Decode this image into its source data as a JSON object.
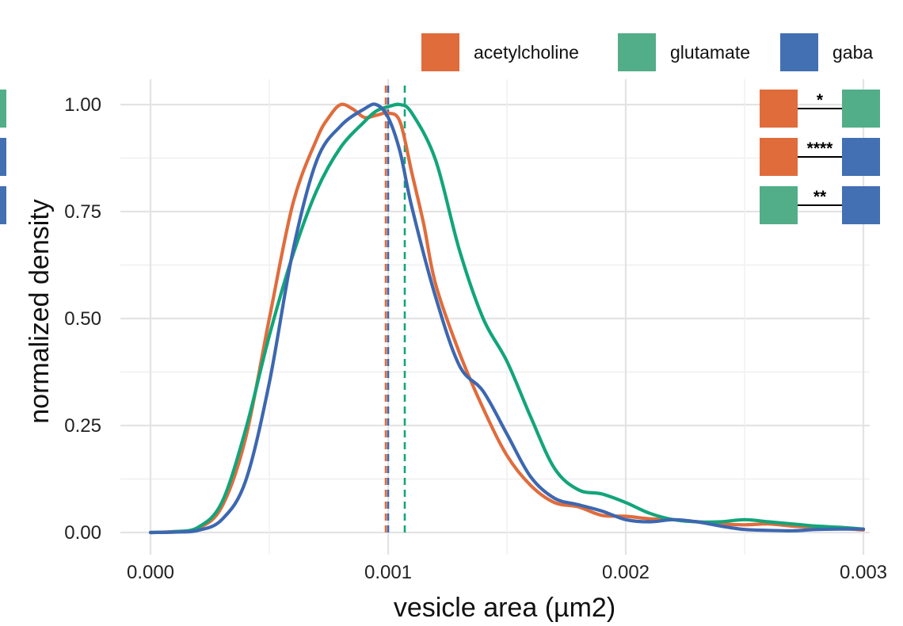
{
  "chart_data": {
    "type": "line",
    "title": "",
    "xlabel": "vesicle area (µm2)",
    "ylabel": "normalized density",
    "xlim": [
      -6e-05,
      0.003
    ],
    "ylim": [
      -0.04,
      1.05
    ],
    "x_ticks": [
      0.0,
      0.001,
      0.002,
      0.003
    ],
    "x_tick_labels": [
      "0.000",
      "0.001",
      "0.002",
      "0.003"
    ],
    "y_ticks": [
      0.0,
      0.25,
      0.5,
      0.75,
      1.0
    ],
    "y_tick_labels": [
      "0.00",
      "0.25",
      "0.50",
      "0.75",
      "1.00"
    ],
    "grid": true,
    "legend_position": "top-right",
    "colors": {
      "acetylcholine": "#E06C3C",
      "glutamate": "#12A57A",
      "gaba": "#3D67B0",
      "glutamate_swatch": "#52AE88",
      "gaba_swatch": "#4270B3"
    },
    "series": [
      {
        "name": "acetylcholine",
        "color": "#E06C3C",
        "mean_line_x": 0.00099,
        "x": [
          0,
          0.0001,
          0.0002,
          0.0003,
          0.0004,
          0.0005,
          0.0006,
          0.0007,
          0.00075,
          0.0008,
          0.00085,
          0.0009,
          0.00095,
          0.001,
          0.00105,
          0.0011,
          0.00115,
          0.0012,
          0.0013,
          0.0014,
          0.0015,
          0.0016,
          0.0017,
          0.0018,
          0.0019,
          0.002,
          0.0021,
          0.0022,
          0.0023,
          0.0024,
          0.0025,
          0.0026,
          0.0027,
          0.0028,
          0.0029,
          0.003
        ],
        "y": [
          0,
          0.002,
          0.01,
          0.06,
          0.22,
          0.5,
          0.77,
          0.92,
          0.97,
          1.0,
          0.99,
          0.97,
          0.975,
          0.98,
          0.96,
          0.84,
          0.72,
          0.58,
          0.42,
          0.29,
          0.18,
          0.11,
          0.07,
          0.06,
          0.04,
          0.038,
          0.032,
          0.03,
          0.025,
          0.02,
          0.018,
          0.02,
          0.015,
          0.012,
          0.01,
          0.006
        ]
      },
      {
        "name": "glutamate",
        "color": "#12A57A",
        "mean_line_x": 0.00107,
        "x": [
          0,
          0.0001,
          0.0002,
          0.0003,
          0.0004,
          0.0005,
          0.0006,
          0.0007,
          0.0008,
          0.0009,
          0.00095,
          0.001,
          0.00105,
          0.0011,
          0.0012,
          0.0013,
          0.0014,
          0.0015,
          0.0016,
          0.0017,
          0.0018,
          0.0019,
          0.002,
          0.0021,
          0.0022,
          0.0023,
          0.0024,
          0.0025,
          0.0026,
          0.0027,
          0.0028,
          0.0029,
          0.003
        ],
        "y": [
          0,
          0.002,
          0.012,
          0.07,
          0.24,
          0.46,
          0.65,
          0.8,
          0.9,
          0.96,
          0.985,
          0.995,
          1.0,
          0.98,
          0.87,
          0.66,
          0.5,
          0.4,
          0.27,
          0.15,
          0.1,
          0.09,
          0.07,
          0.045,
          0.03,
          0.025,
          0.025,
          0.03,
          0.025,
          0.02,
          0.015,
          0.012,
          0.008
        ]
      },
      {
        "name": "gaba",
        "color": "#3D67B0",
        "mean_line_x": 0.001,
        "x": [
          0,
          0.0001,
          0.0002,
          0.0003,
          0.0004,
          0.0005,
          0.0006,
          0.0007,
          0.0008,
          0.0009,
          0.00095,
          0.001,
          0.00105,
          0.0011,
          0.0012,
          0.0013,
          0.0014,
          0.0015,
          0.0016,
          0.0017,
          0.0018,
          0.0019,
          0.002,
          0.0021,
          0.0022,
          0.0023,
          0.0024,
          0.0025,
          0.0026,
          0.0027,
          0.0028,
          0.0029,
          0.003
        ],
        "y": [
          0,
          0.001,
          0.005,
          0.03,
          0.12,
          0.35,
          0.66,
          0.87,
          0.95,
          0.99,
          1.0,
          0.97,
          0.89,
          0.76,
          0.55,
          0.39,
          0.33,
          0.23,
          0.13,
          0.08,
          0.065,
          0.05,
          0.03,
          0.025,
          0.03,
          0.025,
          0.015,
          0.007,
          0.005,
          0.004,
          0.007,
          0.008,
          0.008
        ]
      }
    ],
    "significance": [
      {
        "left": "acetylcholine",
        "right": "glutamate",
        "label": "*"
      },
      {
        "left": "acetylcholine",
        "right": "gaba",
        "label": "****"
      },
      {
        "left": "glutamate",
        "right": "gaba",
        "label": "**"
      }
    ],
    "left_edge_swatches": [
      "glutamate",
      "gaba",
      "gaba"
    ]
  }
}
